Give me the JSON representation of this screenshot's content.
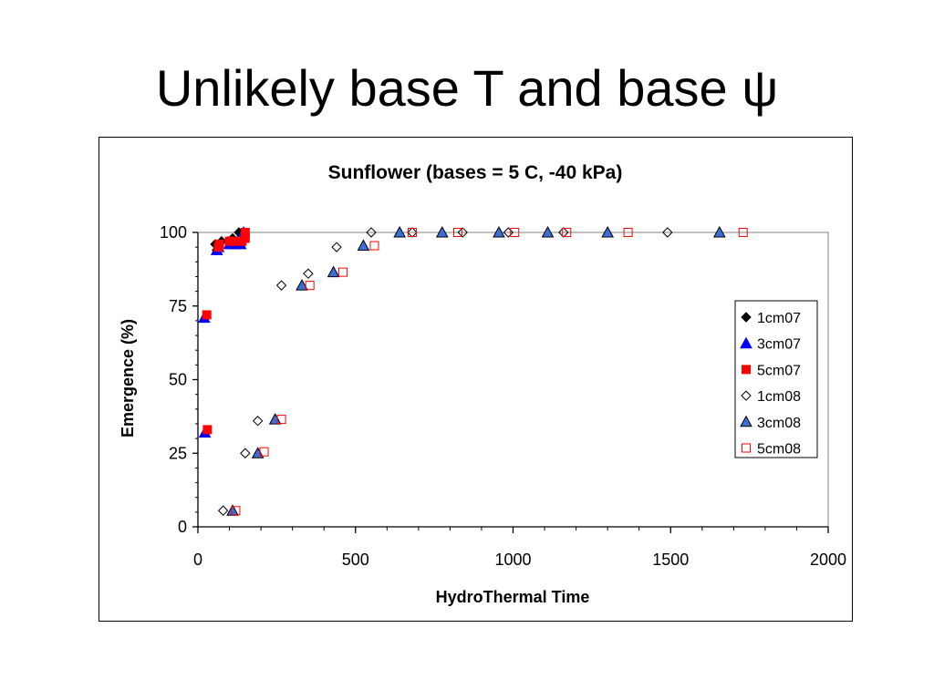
{
  "slide": {
    "title": "Unlikely base T and base ψ"
  },
  "colors": {
    "blue": "#0000ff",
    "red": "#ff0000",
    "steel_blue": "#3a6fd8",
    "black": "#000000"
  },
  "chart_data": {
    "type": "scatter",
    "title": "Sunflower (bases = 5 C, -40 kPa)",
    "xlabel": "HydroThermal Time",
    "ylabel": "Emergence (%)",
    "xlim": [
      0,
      2000
    ],
    "ylim": [
      0,
      100
    ],
    "xticks": [
      0,
      500,
      1000,
      1500,
      2000
    ],
    "yticks": [
      0,
      25,
      50,
      75,
      100
    ],
    "grid": "none",
    "legend_position": "right",
    "series": [
      {
        "name": "1cm07",
        "marker": "diamond",
        "fill": "#000000",
        "stroke": "#000000",
        "points": [
          [
            55,
            96
          ],
          [
            60,
            94
          ],
          [
            65,
            95
          ],
          [
            75,
            97
          ],
          [
            95,
            97
          ],
          [
            110,
            98
          ],
          [
            125,
            97
          ],
          [
            130,
            100
          ],
          [
            140,
            99
          ]
        ]
      },
      {
        "name": "3cm07",
        "marker": "triangle",
        "fill": "#0000ff",
        "stroke": "#0000ff",
        "points": [
          [
            20,
            71
          ],
          [
            22,
            32
          ],
          [
            60,
            94
          ],
          [
            65,
            95
          ],
          [
            100,
            96
          ],
          [
            115,
            96
          ],
          [
            135,
            96
          ],
          [
            145,
            100
          ]
        ]
      },
      {
        "name": "5cm07",
        "marker": "square",
        "fill": "#ff0000",
        "stroke": "#ff0000",
        "points": [
          [
            28,
            72
          ],
          [
            30,
            33
          ],
          [
            65,
            95
          ],
          [
            68,
            96
          ],
          [
            100,
            97
          ],
          [
            120,
            97
          ],
          [
            140,
            97
          ],
          [
            150,
            98
          ],
          [
            150,
            100
          ]
        ]
      },
      {
        "name": "1cm08",
        "marker": "diamond",
        "fill": "none",
        "stroke": "#000000",
        "points": [
          [
            80,
            5.5
          ],
          [
            150,
            25
          ],
          [
            190,
            36
          ],
          [
            265,
            82
          ],
          [
            350,
            86
          ],
          [
            440,
            95
          ],
          [
            550,
            100
          ],
          [
            680,
            100
          ],
          [
            840,
            100
          ],
          [
            985,
            100
          ],
          [
            1160,
            100
          ],
          [
            1490,
            100
          ]
        ]
      },
      {
        "name": "3cm08",
        "marker": "triangle",
        "fill": "#3a6fd8",
        "stroke": "#000000",
        "points": [
          [
            110,
            5.5
          ],
          [
            190,
            25
          ],
          [
            245,
            36.5
          ],
          [
            330,
            82
          ],
          [
            430,
            86.5
          ],
          [
            525,
            95.5
          ],
          [
            640,
            100
          ],
          [
            775,
            100
          ],
          [
            955,
            100
          ],
          [
            1110,
            100
          ],
          [
            1300,
            100
          ],
          [
            1655,
            100
          ]
        ]
      },
      {
        "name": "5cm08",
        "marker": "square",
        "fill": "none",
        "stroke": "#ff0000",
        "points": [
          [
            120,
            5.5
          ],
          [
            210,
            25.5
          ],
          [
            265,
            36.5
          ],
          [
            355,
            82
          ],
          [
            460,
            86.5
          ],
          [
            560,
            95.5
          ],
          [
            680,
            100
          ],
          [
            825,
            100
          ],
          [
            1005,
            100
          ],
          [
            1170,
            100
          ],
          [
            1365,
            100
          ],
          [
            1730,
            100
          ]
        ]
      }
    ]
  }
}
